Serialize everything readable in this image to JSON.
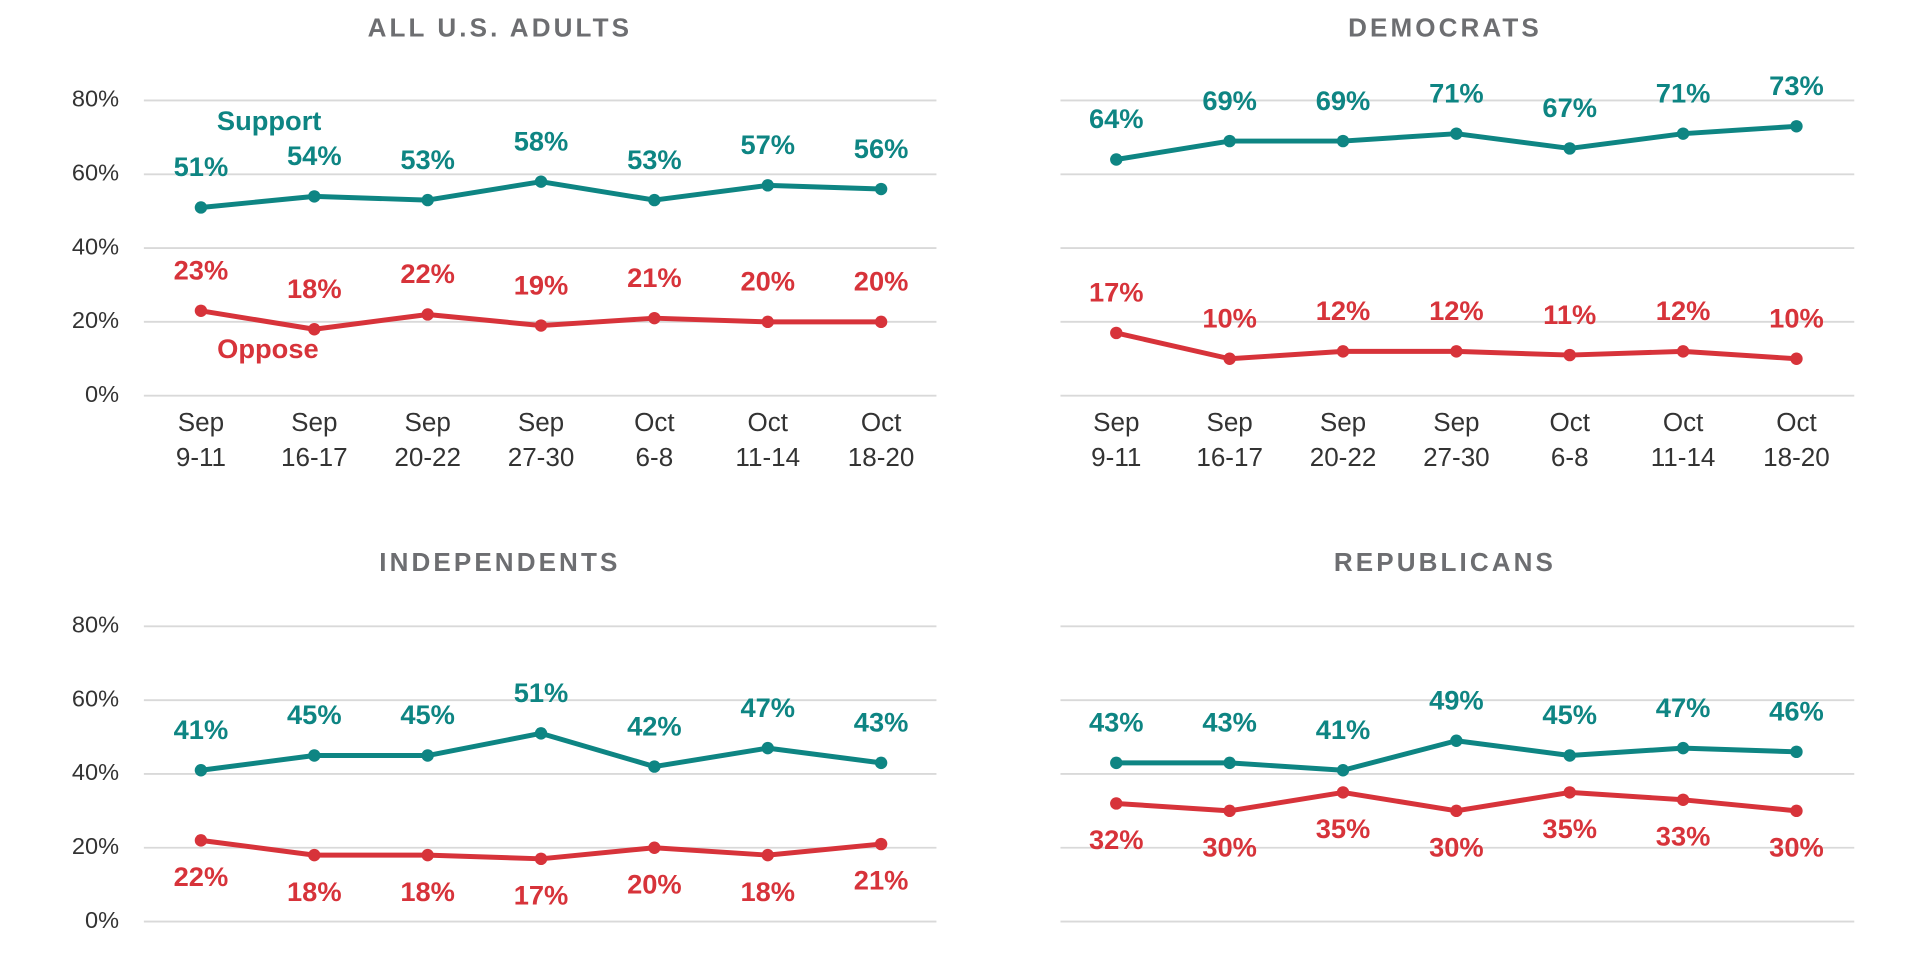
{
  "chart_data": [
    {
      "type": "line",
      "title": "ALL U.S. ADULTS",
      "categories": [
        [
          "Sep",
          "9-11"
        ],
        [
          "Sep",
          "16-17"
        ],
        [
          "Sep",
          "20-22"
        ],
        [
          "Sep",
          "27-30"
        ],
        [
          "Oct",
          "6-8"
        ],
        [
          "Oct",
          "11-14"
        ],
        [
          "Oct",
          "18-20"
        ]
      ],
      "ylim": [
        0,
        80
      ],
      "yticks": [
        {
          "value": 0,
          "label": "0%"
        },
        {
          "value": 20,
          "label": "20%"
        },
        {
          "value": 40,
          "label": "40%"
        },
        {
          "value": 60,
          "label": "60%"
        },
        {
          "value": 80,
          "label": "80%"
        }
      ],
      "grid": true,
      "series": [
        {
          "name": "Support",
          "color": "#0e8583",
          "values": [
            51,
            54,
            53,
            58,
            53,
            57,
            56
          ],
          "value_labels": [
            "51%",
            "54%",
            "53%",
            "58%",
            "53%",
            "57%",
            "56%"
          ]
        },
        {
          "name": "Oppose",
          "color": "#d7333a",
          "values": [
            23,
            18,
            22,
            19,
            21,
            20,
            20
          ],
          "value_labels": [
            "23%",
            "18%",
            "22%",
            "19%",
            "21%",
            "20%",
            "20%"
          ]
        }
      ]
    },
    {
      "type": "line",
      "title": "DEMOCRATS",
      "categories": [
        [
          "Sep",
          "9-11"
        ],
        [
          "Sep",
          "16-17"
        ],
        [
          "Sep",
          "20-22"
        ],
        [
          "Sep",
          "27-30"
        ],
        [
          "Oct",
          "6-8"
        ],
        [
          "Oct",
          "11-14"
        ],
        [
          "Oct",
          "18-20"
        ]
      ],
      "ylim": [
        0,
        80
      ],
      "yticks": [
        0,
        20,
        40,
        60,
        80
      ],
      "grid": true,
      "series": [
        {
          "color": "#0e8583",
          "values": [
            64,
            69,
            69,
            71,
            67,
            71,
            73
          ],
          "value_labels": [
            "64%",
            "69%",
            "69%",
            "71%",
            "67%",
            "71%",
            "73%"
          ]
        },
        {
          "color": "#d7333a",
          "values": [
            17,
            10,
            12,
            12,
            11,
            12,
            10
          ],
          "value_labels": [
            "17%",
            "10%",
            "12%",
            "12%",
            "11%",
            "12%",
            "10%"
          ]
        }
      ]
    },
    {
      "type": "line",
      "title": "INDEPENDENTS",
      "ylim": [
        0,
        80
      ],
      "yticks": [
        {
          "value": 0,
          "label": "0%"
        },
        {
          "value": 20,
          "label": "20%"
        },
        {
          "value": 40,
          "label": "40%"
        },
        {
          "value": 60,
          "label": "60%"
        },
        {
          "value": 80,
          "label": "80%"
        }
      ],
      "grid": true,
      "series": [
        {
          "color": "#0e8583",
          "values": [
            41,
            45,
            45,
            51,
            42,
            47,
            43
          ],
          "value_labels": [
            "41%",
            "45%",
            "45%",
            "51%",
            "42%",
            "47%",
            "43%"
          ]
        },
        {
          "color": "#d7333a",
          "values": [
            22,
            18,
            18,
            17,
            20,
            18,
            21
          ],
          "value_labels": [
            "22%",
            "18%",
            "18%",
            "17%",
            "20%",
            "18%",
            "21%"
          ]
        }
      ]
    },
    {
      "type": "line",
      "title": "REPUBLICANS",
      "ylim": [
        0,
        80
      ],
      "yticks": [
        0,
        20,
        40,
        60,
        80
      ],
      "grid": true,
      "series": [
        {
          "color": "#0e8583",
          "values": [
            43,
            43,
            41,
            49,
            45,
            47,
            46
          ],
          "value_labels": [
            "43%",
            "43%",
            "41%",
            "49%",
            "45%",
            "47%",
            "46%"
          ]
        },
        {
          "color": "#d7333a",
          "values": [
            32,
            30,
            35,
            30,
            35,
            33,
            30
          ],
          "value_labels": [
            "32%",
            "30%",
            "35%",
            "30%",
            "35%",
            "33%",
            "30%"
          ]
        }
      ]
    }
  ]
}
